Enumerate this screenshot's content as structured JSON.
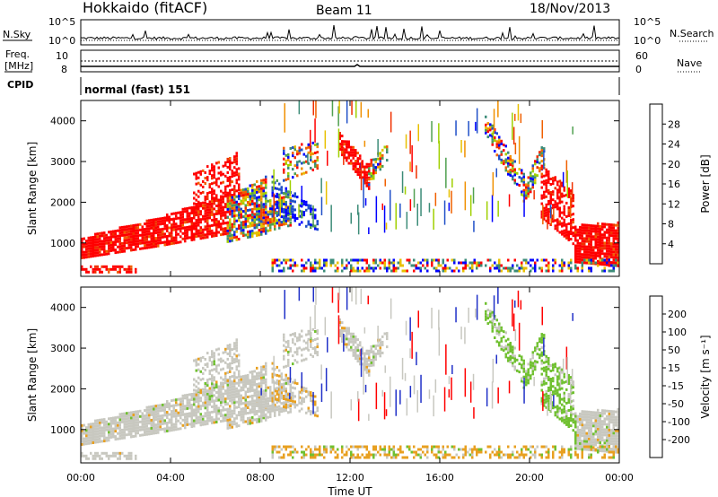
{
  "header": {
    "title": "Hokkaido (fitACF)",
    "beam": "Beam 11",
    "date": "18/Nov/2013"
  },
  "aux": {
    "nsky_label": "N.Sky",
    "nsearch_label": "N.Search",
    "freq_label": "Freq.",
    "freq_unit": "[MHz]",
    "nave_label": "Nave",
    "cpid_label": "CPID",
    "cpid_text": "normal (fast) 151",
    "noise_ticks": [
      "10^5",
      "10^0"
    ],
    "freq_ticks_left": [
      "10",
      "8"
    ],
    "nave_ticks_right": [
      "60",
      "0"
    ]
  },
  "colors": {
    "power": [
      "#0000ff",
      "#2050c8",
      "#3c8c78",
      "#50a050",
      "#a0d000",
      "#e8c000",
      "#f09000",
      "#f06000",
      "#f03000",
      "#ff0000"
    ],
    "velocity": [
      "#2030c8",
      "#2050a0",
      "#30a060",
      "#70c030",
      "#c8c8c0",
      "#c8c8c0",
      "#e8b020",
      "#f09000",
      "#f05010",
      "#ff0000"
    ],
    "velocity_gray": "#c8c8c0",
    "velocity_green": "#70c030",
    "velocity_orange": "#e8a020"
  },
  "chart_data": [
    {
      "type": "heatmap",
      "name": "power",
      "ylabel": "Slant Range [km]",
      "xlabel": "",
      "ylim": [
        180,
        4500
      ],
      "y_ticks": [
        "1000",
        "2000",
        "3000",
        "4000"
      ],
      "x_ticks": [
        "00:00",
        "04:00",
        "08:00",
        "12:00",
        "16:00",
        "20:00",
        "00:00"
      ],
      "colorbar": {
        "label": "Power [dB]",
        "ticks": [
          "4",
          "8",
          "12",
          "16",
          "20",
          "24",
          "28"
        ]
      }
    },
    {
      "type": "heatmap",
      "name": "velocity",
      "ylabel": "Slant Range [km]",
      "xlabel": "Time UT",
      "ylim": [
        180,
        4500
      ],
      "y_ticks": [
        "1000",
        "2000",
        "3000",
        "4000"
      ],
      "x_ticks": [
        "00:00",
        "04:00",
        "08:00",
        "12:00",
        "16:00",
        "20:00",
        "00:00"
      ],
      "colorbar": {
        "label": "Velocity [m s⁻¹]",
        "ticks": [
          "200",
          "100",
          "50",
          "15",
          "-15",
          "-50",
          "-100",
          "-200"
        ]
      }
    }
  ]
}
